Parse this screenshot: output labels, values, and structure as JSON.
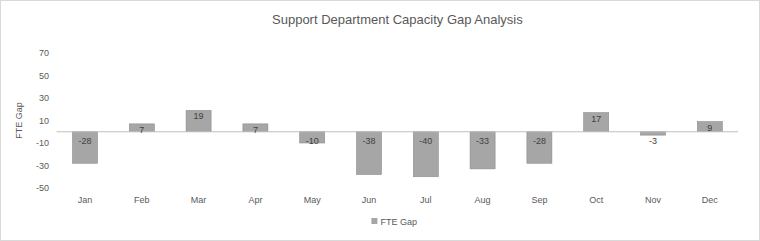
{
  "chart_data": {
    "type": "bar",
    "title": "Support Department Capacity Gap Analysis",
    "y_label": "FTE Gap",
    "categories": [
      "Jan",
      "Feb",
      "Mar",
      "Apr",
      "May",
      "Jun",
      "Jul",
      "Aug",
      "Sep",
      "Oct",
      "Nov",
      "Dec"
    ],
    "series": [
      {
        "name": "FTE Gap",
        "color": "#a6a6a6",
        "values": [
          -28,
          7,
          19,
          7,
          -10,
          -38,
          -40,
          -33,
          -28,
          17,
          -3,
          9
        ]
      }
    ],
    "ylim": [
      -50,
      70
    ],
    "yticks": [
      -50,
      -30,
      -10,
      10,
      30,
      50,
      70
    ],
    "grid": false,
    "data_labels": true,
    "legend": "bottom"
  }
}
